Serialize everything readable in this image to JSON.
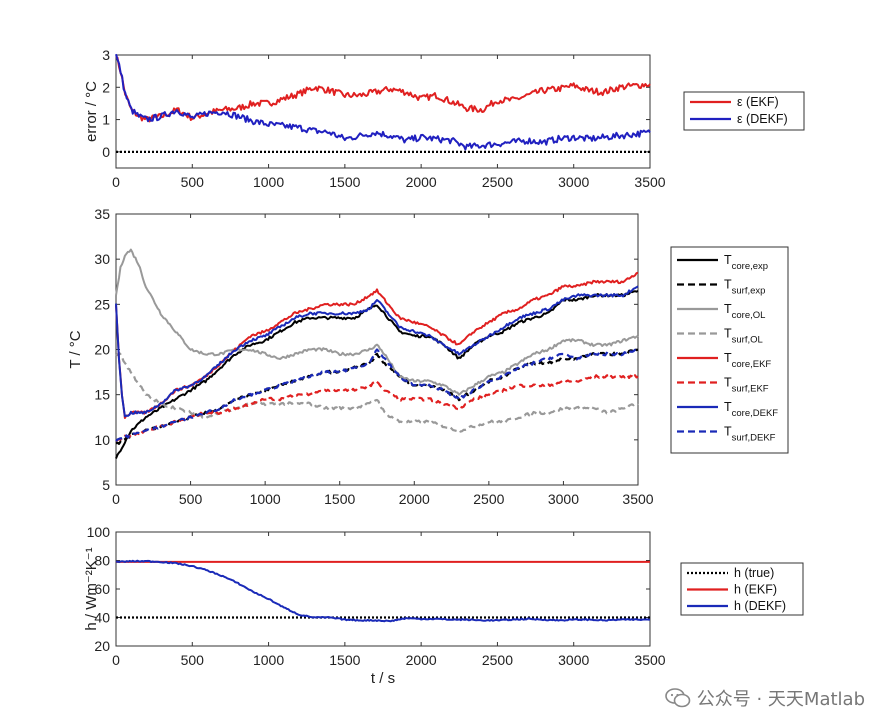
{
  "watermark": {
    "text": "公众号 · 天天Matlab",
    "icon": "wechat-icon"
  },
  "chart_data": [
    {
      "type": "line",
      "xlim": [
        0,
        3500
      ],
      "ylim": [
        -0.5,
        3
      ],
      "xticks": [
        0,
        500,
        1000,
        1500,
        2000,
        2500,
        3000,
        3500
      ],
      "yticks": [
        0,
        1,
        2,
        3
      ],
      "xlabel": "",
      "ylabel": "error / °C",
      "legend_position": "right",
      "series": [
        {
          "name": "ε (EKF)",
          "color": "#e02020",
          "dash": "solid",
          "noise": 0.1,
          "x": [
            0,
            30,
            60,
            100,
            150,
            200,
            300,
            400,
            500,
            600,
            700,
            800,
            900,
            1000,
            1100,
            1200,
            1300,
            1400,
            1500,
            1600,
            1700,
            1800,
            1900,
            2000,
            2100,
            2200,
            2300,
            2400,
            2500,
            2600,
            2700,
            2800,
            2900,
            3000,
            3100,
            3200,
            3300,
            3400,
            3500
          ],
          "y": [
            3.0,
            2.5,
            1.8,
            1.3,
            1.1,
            1.0,
            1.1,
            1.3,
            1.05,
            1.2,
            1.3,
            1.35,
            1.5,
            1.5,
            1.65,
            1.8,
            2.0,
            1.9,
            1.75,
            1.75,
            1.85,
            1.95,
            1.85,
            1.65,
            1.75,
            1.55,
            1.35,
            1.3,
            1.6,
            1.6,
            1.75,
            1.9,
            1.95,
            2.05,
            1.9,
            1.85,
            2.0,
            2.05,
            2.1
          ]
        },
        {
          "name": "ε (DEKF)",
          "color": "#2020c0",
          "dash": "solid",
          "noise": 0.1,
          "x": [
            0,
            30,
            60,
            100,
            150,
            200,
            300,
            400,
            500,
            600,
            700,
            800,
            900,
            1000,
            1100,
            1200,
            1300,
            1400,
            1500,
            1600,
            1700,
            1800,
            1900,
            2000,
            2100,
            2200,
            2300,
            2400,
            2500,
            2600,
            2700,
            2800,
            2900,
            3000,
            3100,
            3200,
            3300,
            3400,
            3500
          ],
          "y": [
            3.0,
            2.5,
            1.8,
            1.3,
            1.1,
            1.0,
            1.1,
            1.3,
            1.05,
            1.2,
            1.25,
            1.1,
            0.95,
            0.85,
            0.8,
            0.75,
            0.65,
            0.6,
            0.4,
            0.5,
            0.6,
            0.5,
            0.35,
            0.45,
            0.4,
            0.35,
            0.15,
            0.2,
            0.25,
            0.3,
            0.35,
            0.3,
            0.4,
            0.45,
            0.4,
            0.45,
            0.5,
            0.55,
            0.6
          ]
        },
        {
          "name": "",
          "color": "#000000",
          "dash": "dot",
          "noise": 0,
          "x": [
            0,
            3500
          ],
          "y": [
            0,
            0
          ]
        }
      ]
    },
    {
      "type": "line",
      "xlim": [
        0,
        3500
      ],
      "ylim": [
        5,
        35
      ],
      "xticks": [
        0,
        500,
        1000,
        1500,
        2000,
        2500,
        3000,
        3500
      ],
      "yticks": [
        5,
        10,
        15,
        20,
        25,
        30,
        35
      ],
      "xlabel": "",
      "ylabel": "T / °C",
      "legend_position": "right",
      "series": [
        {
          "name": "T",
          "sub": "core,exp",
          "color": "#000000",
          "dash": "solid",
          "noise": 0.15,
          "x": [
            0,
            100,
            200,
            300,
            400,
            500,
            600,
            700,
            800,
            900,
            1000,
            1100,
            1200,
            1300,
            1400,
            1500,
            1600,
            1700,
            1750,
            1800,
            1900,
            2000,
            2100,
            2200,
            2300,
            2400,
            2500,
            2600,
            2700,
            2800,
            2900,
            3000,
            3100,
            3200,
            3300,
            3400,
            3500
          ],
          "y": [
            8,
            11,
            12.5,
            13.5,
            14.5,
            15.5,
            16.5,
            18,
            19.5,
            20.5,
            21,
            22,
            23,
            23.5,
            23.5,
            23.5,
            23.5,
            24.5,
            25,
            24,
            22,
            21.5,
            21.5,
            20.5,
            19,
            20.5,
            21.5,
            22,
            23,
            23.5,
            24,
            25.5,
            25.5,
            26,
            26,
            26,
            26.5
          ]
        },
        {
          "name": "T",
          "sub": "surf,exp",
          "color": "#000000",
          "dash": "dash",
          "noise": 0.15,
          "x": [
            0,
            100,
            200,
            300,
            400,
            500,
            600,
            700,
            800,
            900,
            1000,
            1100,
            1200,
            1300,
            1400,
            1500,
            1600,
            1700,
            1750,
            1800,
            1900,
            2000,
            2100,
            2200,
            2300,
            2400,
            2500,
            2600,
            2700,
            2800,
            2900,
            3000,
            3100,
            3200,
            3300,
            3400,
            3500
          ],
          "y": [
            9.5,
            10.5,
            11,
            11.5,
            12,
            12.5,
            13,
            13.5,
            14.5,
            15,
            15.5,
            16,
            16.5,
            17,
            17.5,
            17.5,
            18,
            18.5,
            19.5,
            18.5,
            17,
            16,
            16,
            15.5,
            14.5,
            15.5,
            16.5,
            17,
            18,
            18.5,
            18.5,
            19,
            19,
            19.5,
            19.5,
            19.5,
            20
          ]
        },
        {
          "name": "T",
          "sub": "core,OL",
          "color": "#999999",
          "dash": "solid",
          "noise": 0.15,
          "x": [
            0,
            30,
            60,
            100,
            150,
            200,
            300,
            400,
            500,
            600,
            700,
            800,
            900,
            1000,
            1100,
            1200,
            1300,
            1400,
            1500,
            1600,
            1700,
            1750,
            1800,
            1900,
            2000,
            2100,
            2200,
            2300,
            2400,
            2500,
            2600,
            2700,
            2800,
            2900,
            3000,
            3100,
            3200,
            3300,
            3400,
            3500
          ],
          "y": [
            26,
            29,
            30.5,
            31,
            29.5,
            27,
            24,
            22,
            20,
            19.5,
            19.5,
            20,
            20,
            19.5,
            19,
            19.5,
            20,
            20,
            19.5,
            19.5,
            20,
            20.5,
            19.5,
            17,
            16.5,
            16.5,
            16,
            15,
            16,
            17,
            17.5,
            18.5,
            19.5,
            20,
            21,
            21,
            20.5,
            20.5,
            21,
            21.5
          ]
        },
        {
          "name": "T",
          "sub": "surf,OL",
          "color": "#999999",
          "dash": "dash",
          "noise": 0.15,
          "x": [
            0,
            30,
            60,
            100,
            200,
            300,
            400,
            500,
            600,
            700,
            800,
            900,
            1000,
            1100,
            1200,
            1300,
            1400,
            1500,
            1600,
            1700,
            1750,
            1800,
            1900,
            2000,
            2100,
            2200,
            2300,
            2400,
            2500,
            2600,
            2700,
            2800,
            2900,
            3000,
            3100,
            3200,
            3300,
            3400,
            3500
          ],
          "y": [
            19.5,
            19.5,
            18.5,
            17.5,
            15,
            14,
            13.5,
            13,
            12.5,
            13,
            13.5,
            14,
            14,
            14,
            14,
            14,
            13.5,
            13.5,
            13.5,
            14,
            14.5,
            13,
            12,
            12,
            12,
            11.5,
            11,
            11.5,
            12,
            12,
            12.5,
            13,
            13,
            13.5,
            13.5,
            13.5,
            13,
            13.5,
            14
          ]
        },
        {
          "name": "T",
          "sub": "core,EKF",
          "color": "#e02020",
          "dash": "solid",
          "noise": 0.15,
          "x": [
            0,
            20,
            40,
            60,
            100,
            200,
            300,
            400,
            500,
            600,
            700,
            800,
            900,
            1000,
            1100,
            1200,
            1300,
            1400,
            1500,
            1600,
            1700,
            1750,
            1800,
            1900,
            2000,
            2100,
            2200,
            2300,
            2400,
            2500,
            2600,
            2700,
            2800,
            2900,
            3000,
            3100,
            3200,
            3300,
            3400,
            3500
          ],
          "y": [
            25,
            19,
            15,
            12.5,
            13,
            13,
            14,
            15.5,
            16,
            17,
            18.5,
            20,
            21.5,
            22,
            23,
            24,
            24.5,
            25,
            25,
            25,
            26,
            26.5,
            25.5,
            23.5,
            23,
            22.5,
            21.5,
            20.5,
            22,
            23,
            24,
            24.5,
            25.5,
            26,
            27,
            27,
            27.5,
            27.5,
            27.5,
            28.5
          ]
        },
        {
          "name": "T",
          "sub": "surf,EKF",
          "color": "#e02020",
          "dash": "dash",
          "noise": 0.15,
          "x": [
            0,
            100,
            200,
            300,
            400,
            500,
            600,
            700,
            800,
            900,
            1000,
            1100,
            1200,
            1300,
            1400,
            1500,
            1600,
            1700,
            1750,
            1800,
            1900,
            2000,
            2100,
            2200,
            2300,
            2400,
            2500,
            2600,
            2700,
            2800,
            2900,
            3000,
            3100,
            3200,
            3300,
            3400,
            3500
          ],
          "y": [
            10,
            10.5,
            11,
            11.5,
            12,
            12.5,
            13,
            13,
            13.5,
            14,
            14.5,
            14.5,
            15,
            15,
            15.5,
            15.5,
            15.5,
            16,
            16.5,
            15.5,
            14.5,
            14.5,
            14.5,
            14,
            13.5,
            14.5,
            15,
            15.5,
            16,
            16,
            16,
            16.5,
            16.5,
            17,
            17,
            17,
            17
          ]
        },
        {
          "name": "T",
          "sub": "core,DEKF",
          "color": "#1a2ab8",
          "dash": "solid",
          "noise": 0.15,
          "x": [
            0,
            20,
            40,
            60,
            100,
            200,
            300,
            400,
            500,
            600,
            700,
            800,
            900,
            1000,
            1100,
            1200,
            1300,
            1400,
            1500,
            1600,
            1700,
            1750,
            1800,
            1900,
            2000,
            2100,
            2200,
            2300,
            2400,
            2500,
            2600,
            2700,
            2800,
            2900,
            3000,
            3100,
            3200,
            3300,
            3400,
            3500
          ],
          "y": [
            25,
            19,
            15,
            12.5,
            13,
            13,
            14,
            15.5,
            16,
            17,
            18.5,
            20,
            21,
            21.5,
            22.5,
            23.5,
            24,
            24,
            24,
            24,
            24.5,
            25.5,
            24.5,
            22.5,
            22,
            21.5,
            20.5,
            19.5,
            20.5,
            21.5,
            22.5,
            23.5,
            24,
            24.5,
            25.5,
            26,
            26,
            26,
            26,
            27
          ]
        },
        {
          "name": "T",
          "sub": "surf,DEKF",
          "color": "#1a2ab8",
          "dash": "dash",
          "noise": 0.15,
          "x": [
            0,
            100,
            200,
            300,
            400,
            500,
            600,
            700,
            800,
            900,
            1000,
            1100,
            1200,
            1300,
            1400,
            1500,
            1600,
            1700,
            1750,
            1800,
            1900,
            2000,
            2100,
            2200,
            2300,
            2400,
            2500,
            2600,
            2700,
            2800,
            2900,
            3000,
            3100,
            3200,
            3300,
            3400,
            3500
          ],
          "y": [
            10,
            10.5,
            11,
            11.5,
            12,
            12.5,
            13,
            13.5,
            14.5,
            15,
            15.5,
            16,
            16.5,
            17,
            17.5,
            17.5,
            18,
            18.5,
            20,
            19,
            17,
            16,
            16,
            15.5,
            14.5,
            15.5,
            16.5,
            17,
            18,
            18.5,
            19,
            19.5,
            19,
            19.5,
            19.5,
            19.5,
            20
          ]
        }
      ]
    },
    {
      "type": "line",
      "xlim": [
        0,
        3500
      ],
      "ylim": [
        20,
        100
      ],
      "xticks": [
        0,
        500,
        1000,
        1500,
        2000,
        2500,
        3000,
        3500
      ],
      "yticks": [
        20,
        40,
        60,
        80,
        100
      ],
      "xlabel": "t / s",
      "ylabel": "h / Wm⁻²K⁻¹",
      "legend_position": "right",
      "series": [
        {
          "name": "h  (true)",
          "color": "#000000",
          "dash": "dot",
          "noise": 0,
          "x": [
            0,
            3500
          ],
          "y": [
            40,
            40
          ]
        },
        {
          "name": "h  (EKF)",
          "color": "#e02020",
          "dash": "solid",
          "noise": 0,
          "x": [
            0,
            3500
          ],
          "y": [
            79,
            79
          ]
        },
        {
          "name": "h  (DEKF)",
          "color": "#1a2ab8",
          "dash": "solid",
          "noise": 0.4,
          "x": [
            0,
            100,
            200,
            300,
            400,
            500,
            600,
            700,
            800,
            900,
            1000,
            1100,
            1200,
            1300,
            1400,
            1500,
            1600,
            1700,
            1800,
            1900,
            2000,
            2100,
            2200,
            2300,
            2400,
            2500,
            2600,
            2700,
            2800,
            2900,
            3000,
            3100,
            3200,
            3300,
            3400,
            3500
          ],
          "y": [
            79,
            79.5,
            79.5,
            79,
            78,
            76,
            73,
            69,
            64,
            58,
            53,
            47,
            42,
            40,
            40,
            38.5,
            38,
            38,
            37.5,
            39.5,
            39,
            39,
            38.5,
            38.5,
            38,
            38,
            38.5,
            39,
            38.5,
            38,
            38.5,
            38.5,
            38,
            38.5,
            38.5,
            38.5
          ]
        }
      ]
    }
  ]
}
